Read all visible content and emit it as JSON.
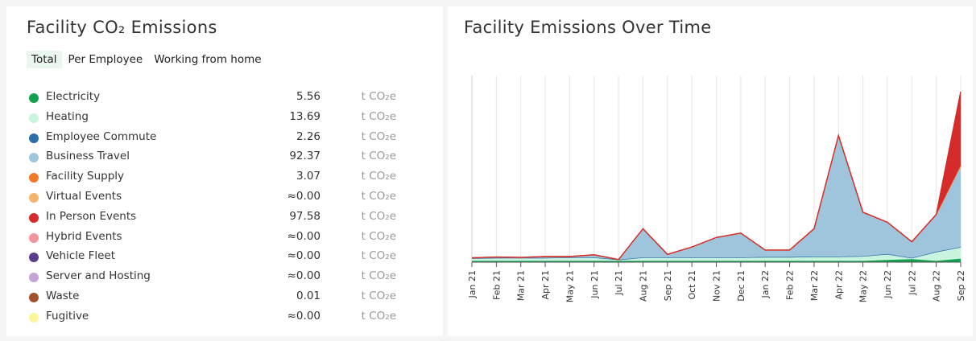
{
  "left": {
    "title": "Facility CO₂ Emissions",
    "tabs": [
      {
        "label": "Total",
        "active": true
      },
      {
        "label": "Per Employee",
        "active": false
      },
      {
        "label": "Working from home",
        "active": false
      }
    ],
    "legend": [
      {
        "name": "Electricity",
        "value": "5.56",
        "unit": "t CO₂e",
        "color": "#12a150"
      },
      {
        "name": "Heating",
        "value": "13.69",
        "unit": "t CO₂e",
        "color": "#c9f5df"
      },
      {
        "name": "Employee Commute",
        "value": "2.26",
        "unit": "t CO₂e",
        "color": "#2b6ea8"
      },
      {
        "name": "Business Travel",
        "value": "92.37",
        "unit": "t CO₂e",
        "color": "#9fc5dd"
      },
      {
        "name": "Facility Supply",
        "value": "3.07",
        "unit": "t CO₂e",
        "color": "#f07b2a"
      },
      {
        "name": "Virtual Events",
        "value": "≈0.00",
        "unit": "t CO₂e",
        "color": "#f6b36b"
      },
      {
        "name": "In Person Events",
        "value": "97.58",
        "unit": "t CO₂e",
        "color": "#d62b2b"
      },
      {
        "name": "Hybrid Events",
        "value": "≈0.00",
        "unit": "t CO₂e",
        "color": "#f2959a"
      },
      {
        "name": "Vehicle Fleet",
        "value": "≈0.00",
        "unit": "t CO₂e",
        "color": "#5a3d8c"
      },
      {
        "name": "Server and Hosting",
        "value": "≈0.00",
        "unit": "t CO₂e",
        "color": "#c3a4d4"
      },
      {
        "name": "Waste",
        "value": "0.01",
        "unit": "t CO₂e",
        "color": "#a0522d"
      },
      {
        "name": "Fugitive",
        "value": "≈0.00",
        "unit": "t CO₂e",
        "color": "#fbf59a"
      }
    ]
  },
  "right": {
    "title": "Facility Emissions Over Time"
  },
  "chart_data": {
    "type": "area",
    "stacked": true,
    "title": "Facility Emissions Over Time",
    "xlabel": "",
    "ylabel": "",
    "categories": [
      "Jan 21",
      "Feb 21",
      "Mar 21",
      "Apr 21",
      "May 21",
      "Jun 21",
      "Jul 21",
      "Aug 21",
      "Sep 21",
      "Oct 21",
      "Nov 21",
      "Dec 21",
      "Jan 22",
      "Feb 22",
      "Mar 22",
      "Apr 22",
      "May 22",
      "Jun 22",
      "Jul 22",
      "Aug 22",
      "Sep 22"
    ],
    "ylim": [
      0,
      43
    ],
    "gridlines": "vertical",
    "series": [
      {
        "name": "Electricity",
        "color": "#12a150",
        "values": [
          0.3,
          0.3,
          0.3,
          0.3,
          0.3,
          0.3,
          0.3,
          0.3,
          0.3,
          0.3,
          0.3,
          0.3,
          0.3,
          0.3,
          0.3,
          0.3,
          0.3,
          0.5,
          0.7,
          0.3,
          0.8
        ]
      },
      {
        "name": "Heating",
        "color": "#c9f5df",
        "values": [
          0.5,
          0.6,
          0.6,
          0.6,
          0.7,
          0.7,
          0.2,
          0.7,
          0.7,
          0.7,
          0.7,
          0.7,
          0.8,
          0.8,
          0.9,
          0.9,
          1.0,
          1.3,
          0.2,
          2.0,
          2.6
        ]
      },
      {
        "name": "Employee Commute",
        "color": "#2b6ea8",
        "values": [
          0.1,
          0.1,
          0.1,
          0.1,
          0.1,
          0.1,
          0.1,
          0.1,
          0.1,
          0.1,
          0.1,
          0.1,
          0.1,
          0.1,
          0.1,
          0.1,
          0.1,
          0.1,
          0.1,
          0.1,
          0.1
        ]
      },
      {
        "name": "Business Travel",
        "color": "#9fc5dd",
        "values": [
          0.1,
          0.2,
          0.1,
          0.3,
          0.2,
          0.6,
          0.0,
          6.6,
          0.7,
          2.4,
          4.6,
          5.6,
          1.6,
          1.6,
          6.4,
          27.9,
          10.1,
          7.3,
          3.7,
          8.6,
          18.5
        ]
      },
      {
        "name": "Facility Supply",
        "color": "#f07b2a",
        "values": [
          0.0,
          0.0,
          0.0,
          0.0,
          0.0,
          0.0,
          0.0,
          0.0,
          0.0,
          0.0,
          0.0,
          0.0,
          0.0,
          0.0,
          0.0,
          0.0,
          0.0,
          0.0,
          0.0,
          0.0,
          0.3
        ]
      },
      {
        "name": "In Person Events",
        "color": "#d62b2b",
        "values": [
          0,
          0,
          0,
          0,
          0,
          0,
          0,
          0,
          0,
          0,
          0,
          0,
          0,
          0,
          0,
          0,
          0,
          0,
          0,
          0,
          17.0
        ]
      }
    ]
  }
}
